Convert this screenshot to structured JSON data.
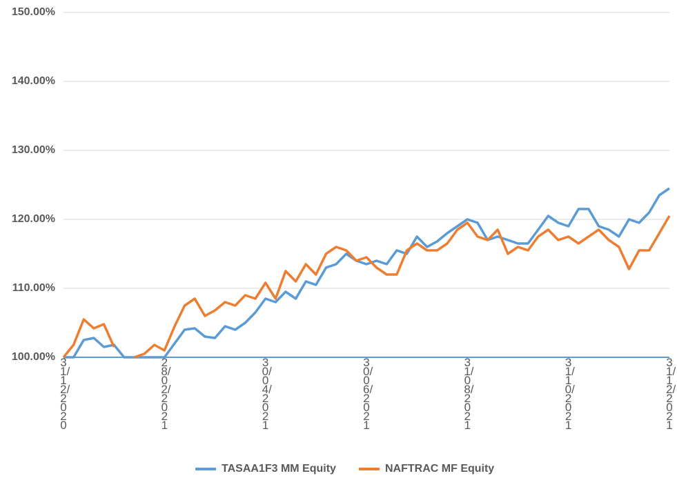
{
  "chart_data": {
    "type": "line",
    "categories": [
      "31/12/2020",
      null,
      null,
      null,
      null,
      null,
      null,
      null,
      null,
      null,
      "28/02/2021",
      null,
      null,
      null,
      null,
      null,
      null,
      null,
      null,
      null,
      "30/04/2021",
      null,
      null,
      null,
      null,
      null,
      null,
      null,
      null,
      null,
      "30/06/2021",
      null,
      null,
      null,
      null,
      null,
      null,
      null,
      null,
      null,
      "31/08/2021",
      null,
      null,
      null,
      null,
      null,
      null,
      null,
      null,
      null,
      "31/10/2021",
      null,
      null,
      null,
      null,
      null,
      null,
      null,
      null,
      null,
      "31/12/2021"
    ],
    "series": [
      {
        "name": "TASAA1F3 MM Equity",
        "color": "#5b9bd5",
        "values": [
          100,
          100,
          102.5,
          102.8,
          101.5,
          101.8,
          100,
          100,
          100,
          100,
          100,
          102,
          104,
          104.2,
          103,
          102.8,
          104.5,
          104,
          105,
          106.5,
          108.5,
          108,
          109.5,
          108.5,
          111,
          110.5,
          113,
          113.5,
          115,
          114,
          113.5,
          114,
          113.5,
          115.5,
          115,
          117.5,
          116,
          116.8,
          118,
          119,
          120,
          119.5,
          117,
          117.5,
          117,
          116.5,
          116.5,
          118.5,
          120.5,
          119.5,
          119,
          121.5,
          121.5,
          119,
          118.5,
          117.5,
          120,
          119.5,
          121,
          123.5,
          124.5
        ]
      },
      {
        "name": "NAFTRAC MF Equity",
        "color": "#ed7d31",
        "values": [
          100,
          101.8,
          105.5,
          104.2,
          104.8,
          101.5,
          null,
          100,
          100.5,
          101.8,
          101,
          104.5,
          107.5,
          108.5,
          106,
          106.8,
          108,
          107.5,
          109,
          108.5,
          110.8,
          108.5,
          112.5,
          111,
          113.5,
          112,
          115,
          116,
          115.5,
          114,
          114.5,
          113,
          112,
          112,
          115.5,
          116.5,
          115.5,
          115.5,
          116.5,
          118.5,
          119.5,
          117.5,
          117,
          118.5,
          115,
          116,
          115.5,
          117.5,
          118.5,
          117,
          117.5,
          116.5,
          117.5,
          118.5,
          117,
          116,
          112.8,
          115.5,
          115.5,
          118,
          120.5
        ]
      }
    ],
    "ylim": [
      100,
      150
    ],
    "yticks": [
      {
        "value": 100,
        "label": "100.00%"
      },
      {
        "value": 110,
        "label": "110.00%"
      },
      {
        "value": 120,
        "label": "120.00%"
      },
      {
        "value": 130,
        "label": "130.00%"
      },
      {
        "value": 140,
        "label": "140.00%"
      },
      {
        "value": 150,
        "label": "150.00%"
      }
    ],
    "grid": true,
    "legend": "bottom"
  }
}
